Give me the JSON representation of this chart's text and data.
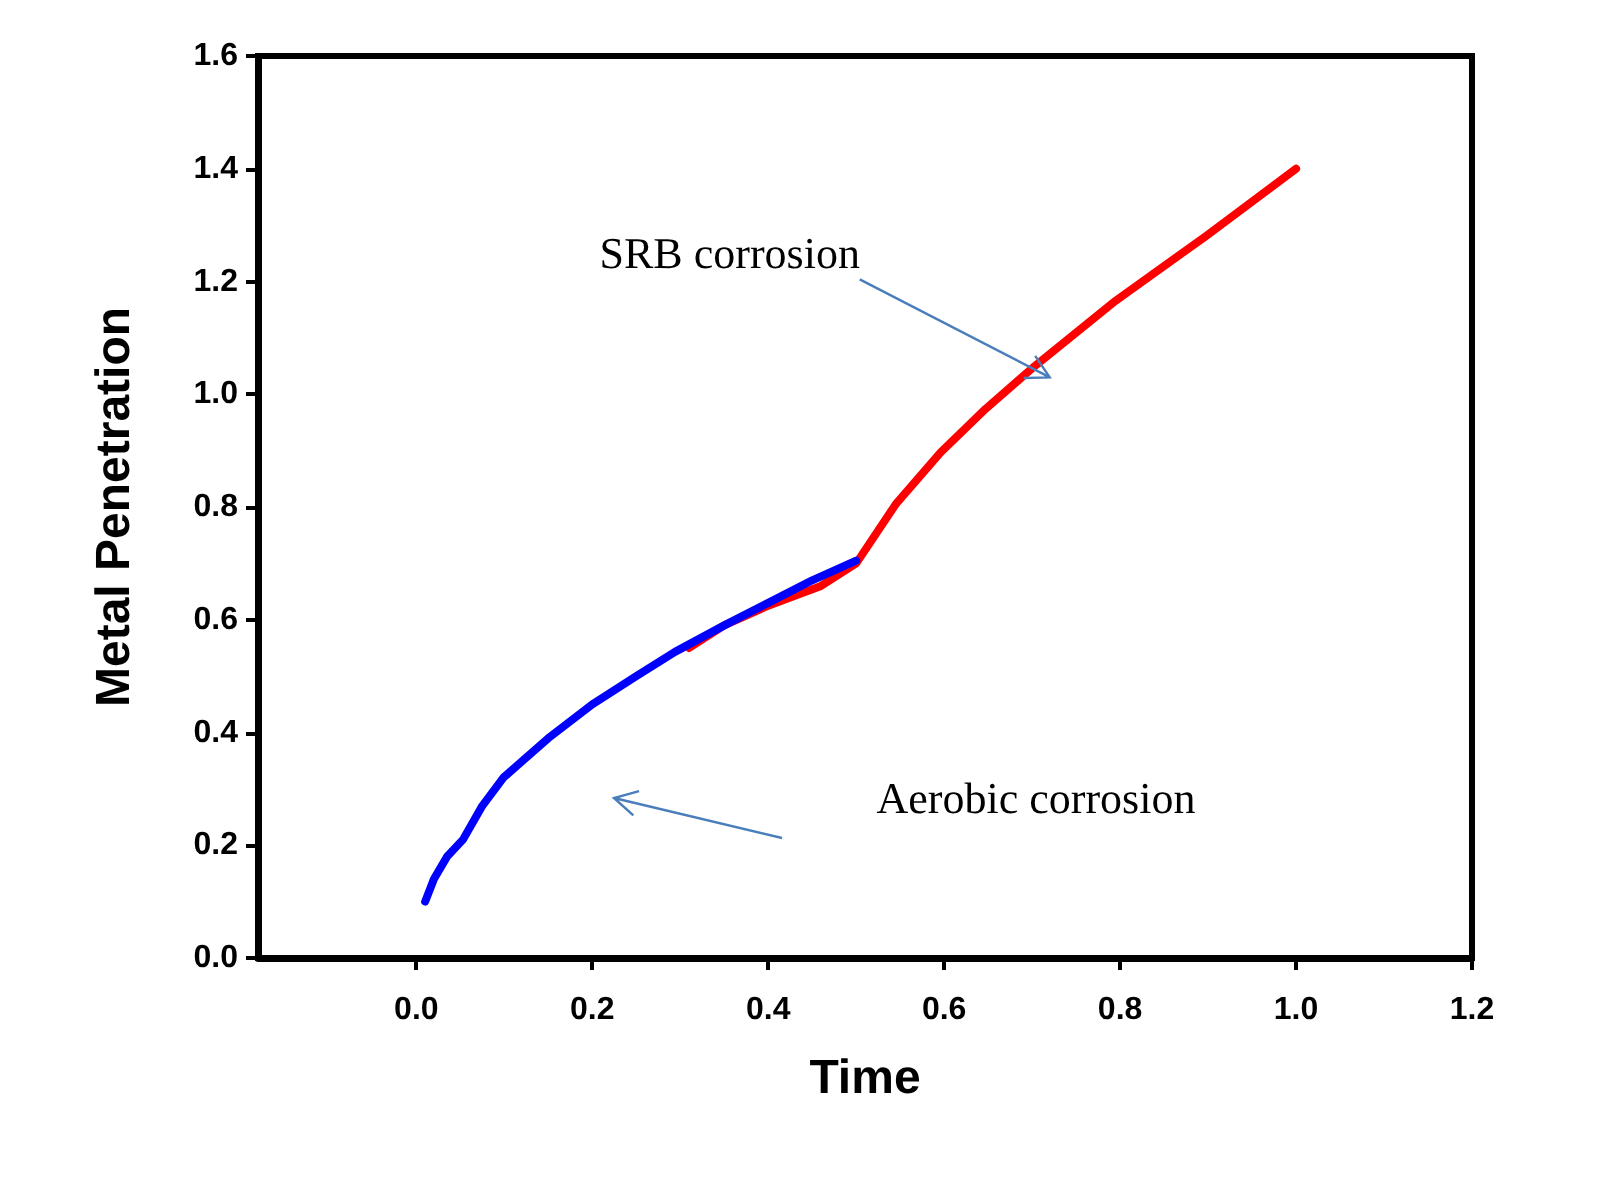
{
  "chart_data": {
    "type": "line",
    "xlabel": "Time",
    "ylabel": "Metal Penetration",
    "xlim": [
      -0.18,
      1.2
    ],
    "ylim": [
      0,
      1.6
    ],
    "xticks": [
      {
        "value": 0,
        "label": "0.0"
      },
      {
        "value": 0.2,
        "label": "0.2"
      },
      {
        "value": 0.4,
        "label": "0.4"
      },
      {
        "value": 0.6,
        "label": "0.6"
      },
      {
        "value": 0.8,
        "label": "0.8"
      },
      {
        "value": 1,
        "label": "1.0"
      },
      {
        "value": 1.2,
        "label": "1.2"
      }
    ],
    "yticks": [
      {
        "value": 0,
        "label": "0.0"
      },
      {
        "value": 0.2,
        "label": "0.2"
      },
      {
        "value": 0.4,
        "label": "0.4"
      },
      {
        "value": 0.6,
        "label": "0.6"
      },
      {
        "value": 0.8,
        "label": "0.8"
      },
      {
        "value": 1,
        "label": "1.0"
      },
      {
        "value": 1.2,
        "label": "1.2"
      },
      {
        "value": 1.4,
        "label": "1.4"
      },
      {
        "value": 1.6,
        "label": "1.6"
      }
    ],
    "grid": false,
    "marker": "none",
    "line_style": "solid",
    "series": [
      {
        "color": "#ff0000",
        "x": [
          0.31,
          0.35,
          0.4,
          0.46,
          0.5,
          0.545,
          0.596,
          0.647,
          0.703,
          0.795,
          0.897,
          1.0
        ],
        "values": [
          0.55,
          0.59,
          0.625,
          0.66,
          0.7,
          0.805,
          0.897,
          0.974,
          1.05,
          1.166,
          1.28,
          1.4
        ]
      },
      {
        "color": "#0000ff",
        "x": [
          0.01,
          0.02,
          0.035,
          0.053,
          0.075,
          0.099,
          0.15,
          0.2,
          0.25,
          0.294,
          0.35,
          0.4,
          0.45,
          0.5
        ],
        "values": [
          0.1,
          0.14,
          0.18,
          0.21,
          0.27,
          0.32,
          0.39,
          0.45,
          0.5,
          0.543,
          0.59,
          0.63,
          0.67,
          0.705
        ]
      }
    ],
    "annotations": [
      {
        "text": "SRB corrosion",
        "x": 0.72,
        "y": 1.03
      },
      "Aerobic corrosion"
    ]
  }
}
